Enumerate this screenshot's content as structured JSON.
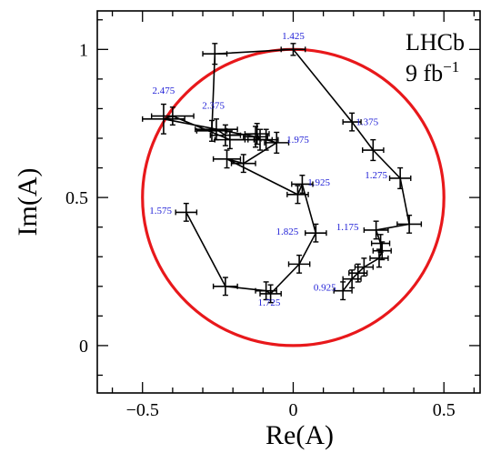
{
  "chart_data": {
    "type": "line",
    "xlabel": "Re(A)",
    "ylabel": "Im(A)",
    "xlim": [
      -0.65,
      0.62
    ],
    "ylim": [
      -0.16,
      1.13
    ],
    "xticks": [
      -0.5,
      0,
      0.5
    ],
    "xtick_labels": [
      "−0.5",
      "0",
      "0.5"
    ],
    "yticks": [
      0,
      0.5,
      1
    ],
    "ytick_labels": [
      "0",
      "0.5",
      "1"
    ],
    "grid": false,
    "legend": "none",
    "logo": {
      "line1": "LHCb",
      "line2_base": "9 fb",
      "line2_sup": "−1"
    },
    "circle": {
      "center": [
        0,
        0.5
      ],
      "radius": 0.5,
      "color": "#e8181b"
    },
    "line_color": "#000000",
    "label_color": "#1c1cd6",
    "points": [
      {
        "x": 0.165,
        "y": 0.185,
        "xerr": 0.03,
        "yerr": 0.03
      },
      {
        "x": 0.195,
        "y": 0.225,
        "xerr": 0.03,
        "yerr": 0.03
      },
      {
        "x": 0.215,
        "y": 0.245,
        "xerr": 0.03,
        "yerr": 0.03
      },
      {
        "x": 0.235,
        "y": 0.265,
        "xerr": 0.03,
        "yerr": 0.03
      },
      {
        "x": 0.285,
        "y": 0.295,
        "xerr": 0.03,
        "yerr": 0.03
      },
      {
        "x": 0.295,
        "y": 0.32,
        "xerr": 0.03,
        "yerr": 0.03
      },
      {
        "x": 0.29,
        "y": 0.345,
        "xerr": 0.03,
        "yerr": 0.03
      },
      {
        "x": 0.275,
        "y": 0.39,
        "xerr": 0.04,
        "yerr": 0.03
      },
      {
        "x": 0.385,
        "y": 0.41,
        "xerr": 0.04,
        "yerr": 0.03
      },
      {
        "x": 0.355,
        "y": 0.565,
        "xerr": 0.035,
        "yerr": 0.035
      },
      {
        "x": 0.265,
        "y": 0.66,
        "xerr": 0.035,
        "yerr": 0.035
      },
      {
        "x": 0.195,
        "y": 0.755,
        "xerr": 0.03,
        "yerr": 0.03
      },
      {
        "x": 0.0,
        "y": 1.0,
        "xerr": 0.04,
        "yerr": 0.02
      },
      {
        "x": -0.26,
        "y": 0.985,
        "xerr": 0.04,
        "yerr": 0.035
      },
      {
        "x": -0.27,
        "y": 0.725,
        "xerr": 0.05,
        "yerr": 0.035
      },
      {
        "x": -0.255,
        "y": 0.73,
        "xerr": 0.07,
        "yerr": 0.035
      },
      {
        "x": -0.225,
        "y": 0.71,
        "xerr": 0.05,
        "yerr": 0.035
      },
      {
        "x": -0.12,
        "y": 0.715,
        "xerr": 0.04,
        "yerr": 0.035
      },
      {
        "x": -0.11,
        "y": 0.695,
        "xerr": 0.04,
        "yerr": 0.035
      },
      {
        "x": -0.125,
        "y": 0.705,
        "xerr": 0.04,
        "yerr": 0.035
      },
      {
        "x": -0.43,
        "y": 0.765,
        "xerr": 0.07,
        "yerr": 0.05
      },
      {
        "x": -0.4,
        "y": 0.775,
        "xerr": 0.07,
        "yerr": 0.03
      },
      {
        "x": -0.21,
        "y": 0.695,
        "xerr": 0.05,
        "yerr": 0.03
      },
      {
        "x": -0.09,
        "y": 0.695,
        "xerr": 0.04,
        "yerr": 0.035
      },
      {
        "x": -0.055,
        "y": 0.685,
        "xerr": 0.04,
        "yerr": 0.035
      },
      {
        "x": -0.165,
        "y": 0.615,
        "xerr": 0.04,
        "yerr": 0.03
      },
      {
        "x": -0.22,
        "y": 0.63,
        "xerr": 0.045,
        "yerr": 0.03
      },
      {
        "x": 0.015,
        "y": 0.51,
        "xerr": 0.035,
        "yerr": 0.03
      },
      {
        "x": 0.03,
        "y": 0.545,
        "xerr": 0.035,
        "yerr": 0.03
      },
      {
        "x": 0.075,
        "y": 0.38,
        "xerr": 0.035,
        "yerr": 0.03
      },
      {
        "x": 0.02,
        "y": 0.275,
        "xerr": 0.035,
        "yerr": 0.03
      },
      {
        "x": -0.075,
        "y": 0.175,
        "xerr": 0.035,
        "yerr": 0.03
      },
      {
        "x": -0.09,
        "y": 0.185,
        "xerr": 0.035,
        "yerr": 0.03
      },
      {
        "x": -0.225,
        "y": 0.2,
        "xerr": 0.04,
        "yerr": 0.03
      },
      {
        "x": -0.355,
        "y": 0.45,
        "xerr": 0.035,
        "yerr": 0.03
      }
    ],
    "annotations": [
      {
        "text": "1.425",
        "x": 0.0,
        "y": 1.035
      },
      {
        "text": "1.375",
        "x": 0.245,
        "y": 0.745
      },
      {
        "text": "1.275",
        "x": 0.275,
        "y": 0.565
      },
      {
        "text": "1.175",
        "x": 0.18,
        "y": 0.39
      },
      {
        "text": "0.925",
        "x": 0.105,
        "y": 0.185
      },
      {
        "text": "1.825",
        "x": -0.02,
        "y": 0.375
      },
      {
        "text": "1.925",
        "x": 0.085,
        "y": 0.54
      },
      {
        "text": "1.975",
        "x": 0.015,
        "y": 0.685
      },
      {
        "text": "2.375",
        "x": -0.265,
        "y": 0.8
      },
      {
        "text": "2.475",
        "x": -0.43,
        "y": 0.85
      },
      {
        "text": "1.575",
        "x": -0.44,
        "y": 0.445
      },
      {
        "text": "1.725",
        "x": -0.08,
        "y": 0.135
      }
    ]
  }
}
